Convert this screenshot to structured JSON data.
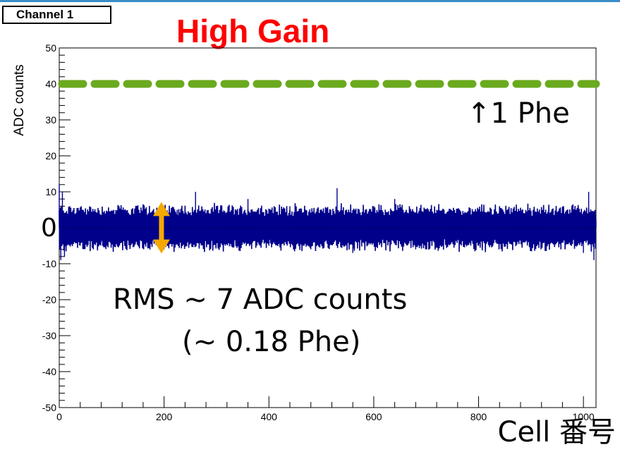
{
  "panel": {
    "channel_label": "Channel 1"
  },
  "chart_data": {
    "type": "line",
    "title": "High Gain",
    "xlabel": "Cell 番号",
    "ylabel": "ADC counts",
    "xlim": [
      0,
      1024
    ],
    "ylim": [
      -50,
      50
    ],
    "x_ticks": [
      0,
      200,
      400,
      600,
      800,
      1000
    ],
    "y_ticks": [
      -50,
      -40,
      -30,
      -20,
      -10,
      0,
      10,
      20,
      30,
      40,
      50
    ],
    "y_tick_labels": [
      "-50",
      "-40",
      "-30",
      "-20",
      "-10",
      "",
      "10",
      "20",
      "30",
      "40",
      "50"
    ],
    "grid": false,
    "series": [
      {
        "type": "line",
        "color": "#00008b",
        "baseline": 0,
        "rms": 7,
        "points": [
          [
            0,
            12
          ],
          [
            3,
            -9
          ],
          [
            6,
            10
          ],
          [
            10,
            -8
          ],
          [
            20,
            6
          ],
          [
            40,
            -5
          ],
          [
            60,
            4
          ],
          [
            80,
            -4
          ],
          [
            120,
            5
          ],
          [
            160,
            6
          ],
          [
            200,
            -6
          ],
          [
            225,
            5
          ],
          [
            260,
            10
          ],
          [
            300,
            6
          ],
          [
            360,
            8
          ],
          [
            400,
            -5
          ],
          [
            440,
            6
          ],
          [
            480,
            -6
          ],
          [
            530,
            11
          ],
          [
            560,
            -7
          ],
          [
            600,
            6
          ],
          [
            640,
            8
          ],
          [
            680,
            -6
          ],
          [
            720,
            5
          ],
          [
            760,
            4
          ],
          [
            800,
            -5
          ],
          [
            840,
            4
          ],
          [
            880,
            5
          ],
          [
            920,
            -4
          ],
          [
            960,
            4
          ],
          [
            1000,
            -7
          ],
          [
            1010,
            10
          ],
          [
            1020,
            -9
          ],
          [
            1024,
            2
          ]
        ]
      },
      {
        "type": "reference_line",
        "style": "dashed",
        "color": "#6aaa1e",
        "y": 40
      }
    ],
    "annotations": {
      "reference_label": "↑1 Phe",
      "zero_label": "0",
      "rms_label": "RMS ~ 7 ADC counts",
      "rms_sublabel": "(~ 0.18 Phe)",
      "arrow": {
        "x": 195,
        "y_top": 6,
        "y_bottom": -6,
        "color": "#f5a800"
      }
    }
  }
}
